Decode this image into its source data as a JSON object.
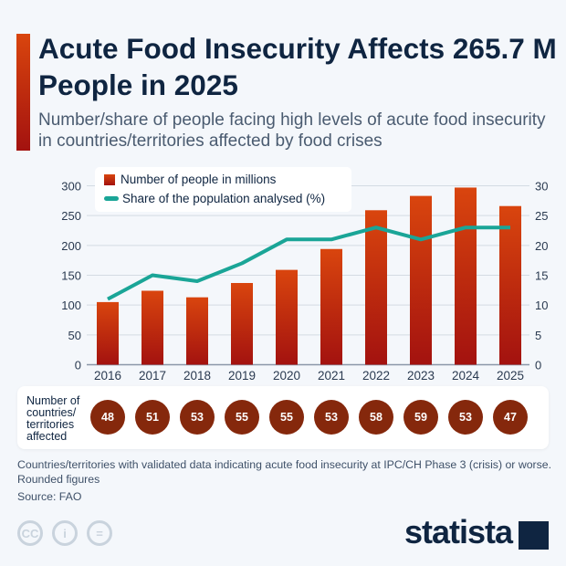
{
  "header": {
    "title": "Acute Food Insecurity Affects 265.7 M People in 2025",
    "subtitle": "Number/share of people facing high levels of acute food insecurity in countries/territories affected by food crises"
  },
  "chart_data": {
    "type": "bar",
    "categories": [
      "2016",
      "2017",
      "2018",
      "2019",
      "2020",
      "2021",
      "2022",
      "2023",
      "2024",
      "2025"
    ],
    "series": [
      {
        "name": "Number of people in millions",
        "type": "bar",
        "axis": "left",
        "values": [
          105,
          124,
          113,
          137,
          159,
          194,
          259,
          283,
          297,
          266
        ]
      },
      {
        "name": "Share of the population analysed (%)",
        "type": "line",
        "axis": "right",
        "values": [
          11,
          15,
          14,
          17,
          21,
          21,
          23,
          21,
          23,
          23
        ]
      }
    ],
    "ylim": [
      0,
      300
    ],
    "y2lim": [
      0,
      30
    ],
    "yticks": [
      "0",
      "50",
      "100",
      "150",
      "200",
      "250",
      "300"
    ],
    "y2ticks": [
      "0",
      "5",
      "10",
      "15",
      "20",
      "25",
      "30"
    ],
    "grid": true,
    "legend": "top-left",
    "colors": {
      "bar_top": "#d9450e",
      "bar_bottom": "#a3120f",
      "line": "#1aa597"
    }
  },
  "countries": {
    "label": "Number of countries/ territories affected",
    "values": [
      "48",
      "51",
      "53",
      "55",
      "55",
      "53",
      "58",
      "59",
      "53",
      "47"
    ]
  },
  "footer": {
    "note": "Countries/territories with validated data indicating acute food insecurity at IPC/CH Phase 3 (crisis) or worse. Rounded figures",
    "source": "Source: FAO",
    "logo": "statista"
  },
  "icons": {
    "cc": "CC",
    "by": "i",
    "nd": "="
  }
}
